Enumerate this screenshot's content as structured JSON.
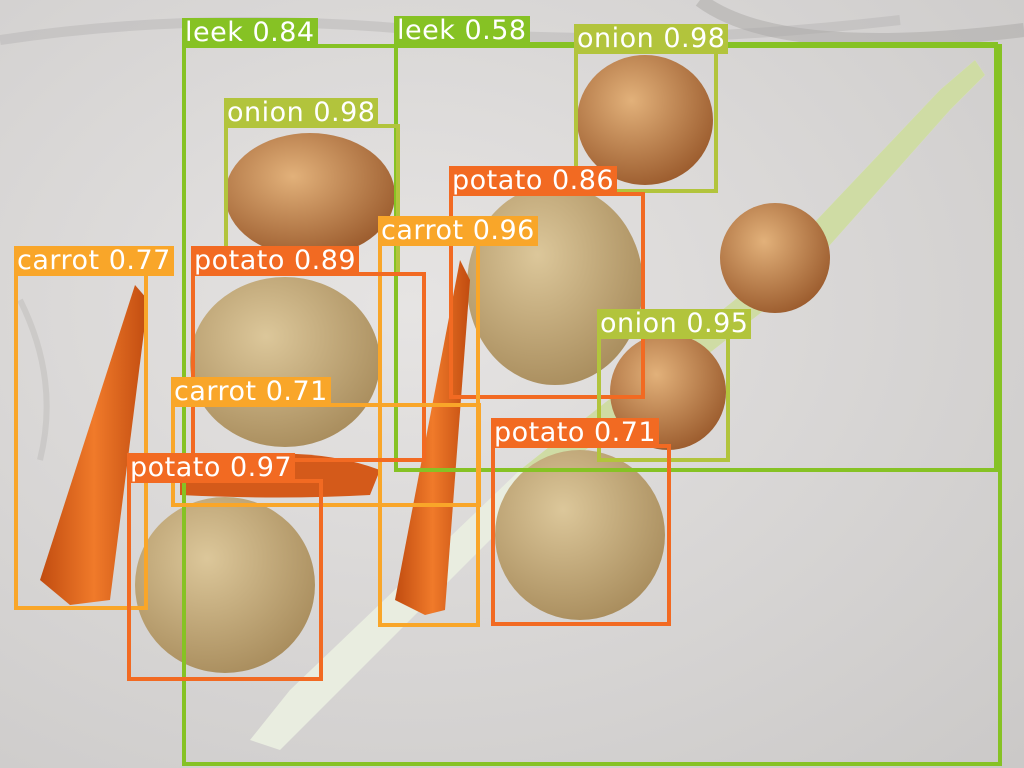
{
  "image": {
    "subject": "vegetables on marble counter",
    "colors": {
      "leek": "#86c224",
      "onion": "#b2c43c",
      "potato": "#f26a22",
      "carrot": "#f9a629"
    }
  },
  "detections": [
    {
      "label": "leek 0.84",
      "cls": "leek"
    },
    {
      "label": "leek 0.58",
      "cls": "leek"
    },
    {
      "label": "onion 0.98",
      "cls": "onion"
    },
    {
      "label": "onion 0.98",
      "cls": "onion"
    },
    {
      "label": "potato 0.86",
      "cls": "potato"
    },
    {
      "label": "carrot 0.96",
      "cls": "carrot"
    },
    {
      "label": "carrot 0.77",
      "cls": "carrot"
    },
    {
      "label": "potato 0.89",
      "cls": "potato"
    },
    {
      "label": "onion 0.95",
      "cls": "onion"
    },
    {
      "label": "carrot 0.71",
      "cls": "carrot"
    },
    {
      "label": "potato 0.71",
      "cls": "potato"
    },
    {
      "label": "potato 0.97",
      "cls": "potato"
    }
  ]
}
